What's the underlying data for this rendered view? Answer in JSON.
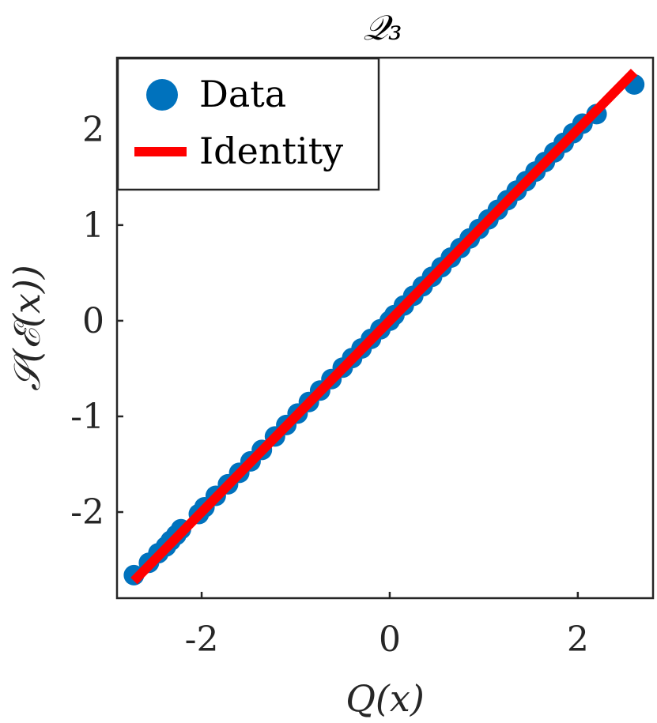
{
  "chart_data": {
    "type": "scatter",
    "title": "𝒬₃",
    "xlabel": "Q(x)",
    "ylabel": "𝒮(ℰ(x))",
    "xlim": [
      -2.9,
      2.8
    ],
    "ylim": [
      -2.9,
      2.75
    ],
    "xticks": [
      -2,
      0,
      2
    ],
    "yticks": [
      -2,
      -1,
      0,
      1,
      2
    ],
    "xtick_labels": [
      "-2",
      "0",
      "2"
    ],
    "ytick_labels": [
      "-2",
      "-1",
      "0",
      "1",
      "2"
    ],
    "grid": false,
    "legend_position": "top-left",
    "series": [
      {
        "name": "Data",
        "kind": "scatter",
        "color": "#0072BD",
        "x": [
          -2.72,
          -2.56,
          -2.46,
          -2.38,
          -2.33,
          -2.27,
          -2.22,
          -2.03,
          -1.97,
          -1.85,
          -1.72,
          -1.6,
          -1.48,
          -1.36,
          -1.22,
          -1.1,
          -0.98,
          -0.86,
          -0.74,
          -0.62,
          -0.5,
          -0.4,
          -0.3,
          -0.2,
          -0.1,
          0.0,
          0.05,
          0.15,
          0.25,
          0.35,
          0.45,
          0.55,
          0.65,
          0.75,
          0.85,
          0.95,
          1.05,
          1.15,
          1.25,
          1.35,
          1.45,
          1.55,
          1.65,
          1.75,
          1.85,
          1.95,
          2.05,
          2.2,
          2.6
        ],
        "y": [
          -2.66,
          -2.53,
          -2.43,
          -2.36,
          -2.3,
          -2.24,
          -2.18,
          -2.02,
          -1.95,
          -1.83,
          -1.71,
          -1.59,
          -1.47,
          -1.35,
          -1.21,
          -1.09,
          -0.97,
          -0.85,
          -0.73,
          -0.61,
          -0.49,
          -0.39,
          -0.29,
          -0.19,
          -0.09,
          0.0,
          0.06,
          0.16,
          0.26,
          0.36,
          0.46,
          0.56,
          0.66,
          0.76,
          0.86,
          0.96,
          1.06,
          1.16,
          1.26,
          1.36,
          1.46,
          1.56,
          1.66,
          1.76,
          1.86,
          1.96,
          2.06,
          2.16,
          2.47
        ]
      },
      {
        "name": "Identity",
        "kind": "line",
        "color": "#FF0000",
        "x": [
          -2.72,
          2.6
        ],
        "y": [
          -2.72,
          2.6
        ]
      }
    ]
  }
}
